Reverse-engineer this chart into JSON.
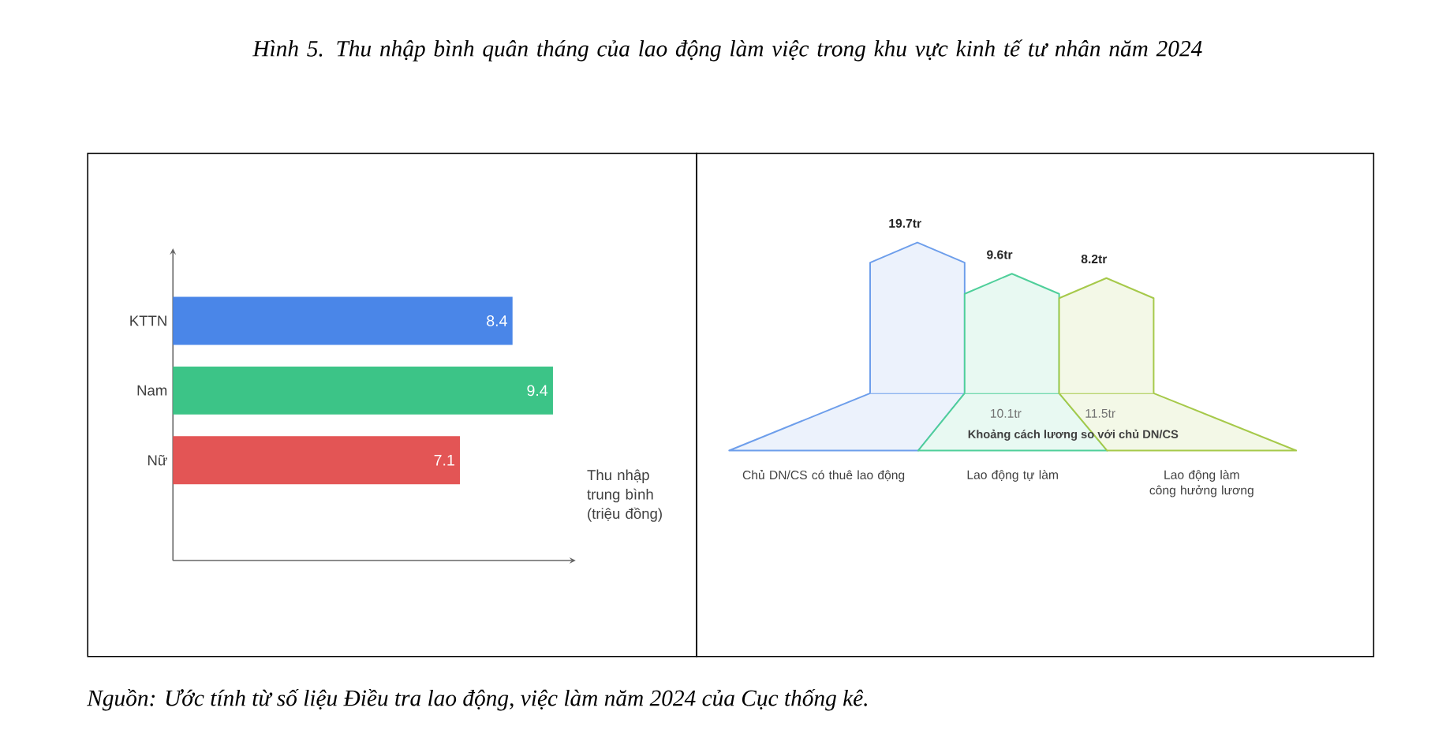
{
  "chart_data": [
    {
      "type": "bar",
      "orientation": "horizontal",
      "title": "Hình 5. Thu nhập bình quân tháng của lao động làm việc trong khu vực kinh tế tư nhân năm 2024",
      "categories": [
        "KTTN",
        "Nam",
        "Nữ"
      ],
      "values": [
        8.4,
        9.4,
        7.1
      ],
      "colors": [
        "#4a86e8",
        "#3cc487",
        "#e35555"
      ],
      "xlabel": "Thu nhập trung bình (triệu đồng)",
      "data_labels": true,
      "annotations": [
        "Nguồn: Ước tính từ số liệu Điều tra lao động, việc làm năm 2024 của Cục thống kê."
      ]
    },
    {
      "type": "other",
      "categories": [
        "Chủ DN/CS có thuê lao động",
        "Lao động tự làm",
        "Lao động làm công hưởng lương"
      ],
      "values": [
        19.7,
        9.6,
        8.2
      ],
      "value_labels": [
        "19.7tr",
        "9.6tr",
        "8.2tr"
      ],
      "colors": [
        "#6d9eeb",
        "#4fcf9a",
        "#a6c94a"
      ],
      "annotations": [
        "10.1tr",
        "11.5tr",
        "Khoảng cách lương so với chủ DN/CS"
      ]
    }
  ]
}
